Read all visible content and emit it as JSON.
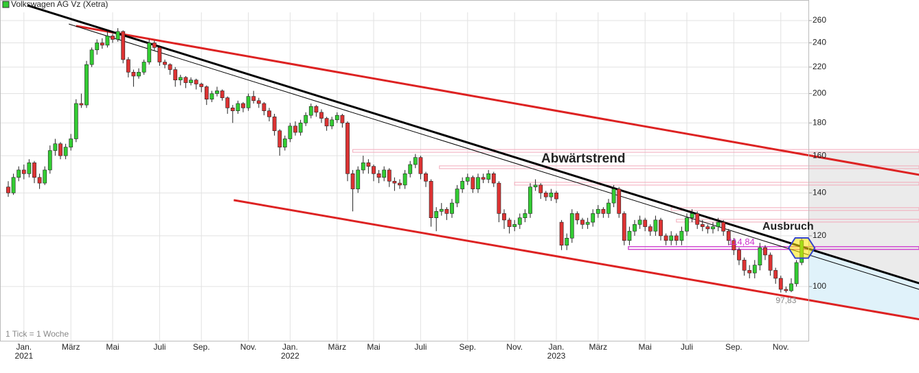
{
  "chart_data": {
    "type": "candlestick",
    "title": "Volkswagen AG Vz (Xetra)",
    "footnote": "1 Tick = 1 Woche",
    "log_scale": true,
    "grid": true,
    "up_color": "#33cc33",
    "down_color": "#dd3333",
    "legend_color": "#33cc33",
    "ylim": [
      82.3,
      267.8
    ],
    "yticks": [
      100,
      120,
      140,
      160,
      180,
      200,
      220,
      240,
      260
    ],
    "categories": [
      null,
      null,
      null,
      "Jan. 2021",
      null,
      null,
      null,
      null,
      null,
      null,
      null,
      null,
      "März",
      null,
      null,
      null,
      null,
      null,
      null,
      null,
      "Mai",
      null,
      null,
      null,
      null,
      null,
      null,
      null,
      null,
      "Juli",
      null,
      null,
      null,
      null,
      null,
      null,
      null,
      "Sep.",
      null,
      null,
      null,
      null,
      null,
      null,
      null,
      null,
      "Nov.",
      null,
      null,
      null,
      null,
      null,
      null,
      null,
      "Jan. 2022",
      null,
      null,
      null,
      null,
      null,
      null,
      null,
      null,
      "März",
      null,
      null,
      null,
      null,
      null,
      null,
      "Mai",
      null,
      null,
      null,
      null,
      null,
      null,
      null,
      null,
      "Juli",
      null,
      null,
      null,
      null,
      null,
      null,
      null,
      null,
      "Sep.",
      null,
      null,
      null,
      null,
      null,
      null,
      null,
      null,
      "Nov.",
      null,
      null,
      null,
      null,
      null,
      null,
      null,
      "Jan. 2023",
      null,
      null,
      null,
      null,
      null,
      null,
      null,
      "März",
      null,
      null,
      null,
      null,
      null,
      null,
      null,
      null,
      "Mai",
      null,
      null,
      null,
      null,
      null,
      null,
      null,
      "Juli",
      null,
      null,
      null,
      null,
      null,
      null,
      null,
      null,
      "Sep.",
      null,
      null,
      null,
      null,
      null,
      null,
      null,
      null,
      "Nov.",
      null,
      null,
      null,
      null
    ],
    "candles": [
      [
        143,
        146,
        138,
        140
      ],
      [
        140,
        150,
        139,
        148
      ],
      [
        148,
        154,
        146,
        152
      ],
      [
        152,
        155,
        147,
        150
      ],
      [
        150,
        158,
        148,
        156
      ],
      [
        156,
        157,
        145,
        148
      ],
      [
        148,
        150,
        142,
        145
      ],
      [
        145,
        154,
        144,
        152
      ],
      [
        152,
        166,
        150,
        163
      ],
      [
        163,
        170,
        160,
        167
      ],
      [
        167,
        168,
        158,
        160
      ],
      [
        160,
        167,
        158,
        165
      ],
      [
        165,
        173,
        163,
        170
      ],
      [
        170,
        196,
        168,
        193
      ],
      [
        193,
        200,
        190,
        192
      ],
      [
        192,
        225,
        190,
        222
      ],
      [
        222,
        236,
        220,
        234
      ],
      [
        234,
        243,
        230,
        240
      ],
      [
        240,
        244,
        235,
        238
      ],
      [
        238,
        250,
        236,
        246
      ],
      [
        246,
        248,
        240,
        243
      ],
      [
        243,
        253,
        241,
        250
      ],
      [
        250,
        251,
        223,
        226
      ],
      [
        226,
        228,
        212,
        216
      ],
      [
        216,
        218,
        205,
        213
      ],
      [
        213,
        219,
        211,
        216
      ],
      [
        216,
        226,
        214,
        224
      ],
      [
        224,
        243,
        222,
        240
      ],
      [
        240,
        242,
        233,
        236
      ],
      [
        236,
        237,
        221,
        224
      ],
      [
        224,
        226,
        219,
        222
      ],
      [
        222,
        223,
        214,
        218
      ],
      [
        218,
        220,
        205,
        210
      ],
      [
        210,
        214,
        206,
        212
      ],
      [
        212,
        213,
        204,
        208
      ],
      [
        208,
        212,
        206,
        210
      ],
      [
        210,
        211,
        203,
        207
      ],
      [
        207,
        208,
        201,
        205
      ],
      [
        205,
        206,
        192,
        196
      ],
      [
        196,
        202,
        194,
        200
      ],
      [
        200,
        205,
        198,
        202
      ],
      [
        202,
        203,
        195,
        197
      ],
      [
        197,
        198,
        186,
        190
      ],
      [
        190,
        192,
        180,
        188
      ],
      [
        188,
        195,
        186,
        193
      ],
      [
        193,
        194,
        187,
        190
      ],
      [
        190,
        200,
        188,
        198
      ],
      [
        198,
        202,
        193,
        195
      ],
      [
        195,
        197,
        190,
        193
      ],
      [
        193,
        194,
        185,
        188
      ],
      [
        188,
        190,
        181,
        184
      ],
      [
        184,
        186,
        172,
        175
      ],
      [
        175,
        176,
        160,
        165
      ],
      [
        165,
        172,
        163,
        170
      ],
      [
        170,
        180,
        168,
        178
      ],
      [
        178,
        181,
        172,
        174
      ],
      [
        174,
        182,
        172,
        180
      ],
      [
        180,
        187,
        178,
        185
      ],
      [
        185,
        193,
        183,
        191
      ],
      [
        191,
        192,
        184,
        187
      ],
      [
        187,
        189,
        180,
        183
      ],
      [
        183,
        184,
        175,
        178
      ],
      [
        178,
        184,
        176,
        182
      ],
      [
        182,
        187,
        180,
        185
      ],
      [
        185,
        186,
        177,
        180
      ],
      [
        180,
        181,
        146,
        150
      ],
      [
        150,
        152,
        131,
        142
      ],
      [
        142,
        154,
        140,
        152
      ],
      [
        152,
        160,
        150,
        156
      ],
      [
        156,
        158,
        150,
        154
      ],
      [
        154,
        155,
        146,
        150
      ],
      [
        150,
        152,
        145,
        148
      ],
      [
        148,
        154,
        146,
        152
      ],
      [
        152,
        153,
        143,
        146
      ],
      [
        146,
        148,
        141,
        145
      ],
      [
        145,
        147,
        142,
        144
      ],
      [
        144,
        152,
        142,
        150
      ],
      [
        150,
        157,
        148,
        155
      ],
      [
        155,
        161,
        153,
        159
      ],
      [
        159,
        160,
        147,
        150
      ],
      [
        150,
        151,
        143,
        146
      ],
      [
        146,
        147,
        124,
        128
      ],
      [
        128,
        133,
        122,
        131
      ],
      [
        131,
        135,
        129,
        132
      ],
      [
        132,
        133,
        127,
        130
      ],
      [
        130,
        137,
        128,
        135
      ],
      [
        135,
        144,
        133,
        142
      ],
      [
        142,
        148,
        140,
        146
      ],
      [
        146,
        150,
        144,
        148
      ],
      [
        148,
        149,
        140,
        142
      ],
      [
        142,
        150,
        140,
        148
      ],
      [
        148,
        150,
        145,
        147
      ],
      [
        147,
        152,
        145,
        150
      ],
      [
        150,
        151,
        143,
        145
      ],
      [
        145,
        146,
        126,
        130
      ],
      [
        130,
        132,
        123,
        127
      ],
      [
        127,
        128,
        121,
        124
      ],
      [
        124,
        127,
        122,
        125
      ],
      [
        125,
        130,
        123,
        128
      ],
      [
        128,
        132,
        126,
        130
      ],
      [
        130,
        145,
        128,
        143
      ],
      [
        143,
        147,
        141,
        144
      ],
      [
        144,
        145,
        137,
        140
      ],
      [
        140,
        141,
        136,
        138
      ],
      [
        138,
        142,
        136,
        140
      ],
      [
        140,
        141,
        135,
        137
      ],
      [
        126,
        127,
        114,
        116
      ],
      [
        116,
        121,
        114,
        119
      ],
      [
        119,
        132,
        117,
        130
      ],
      [
        130,
        131,
        125,
        127
      ],
      [
        127,
        128,
        123,
        125
      ],
      [
        125,
        128,
        123,
        126
      ],
      [
        126,
        132,
        124,
        130
      ],
      [
        130,
        134,
        128,
        132
      ],
      [
        132,
        133,
        128,
        130
      ],
      [
        130,
        137,
        128,
        135
      ],
      [
        135,
        144,
        133,
        142
      ],
      [
        142,
        143,
        128,
        130
      ],
      [
        130,
        131,
        116,
        118
      ],
      [
        118,
        124,
        116,
        122
      ],
      [
        122,
        127,
        120,
        125
      ],
      [
        125,
        129,
        123,
        127
      ],
      [
        127,
        128,
        122,
        124
      ],
      [
        124,
        125,
        120,
        122
      ],
      [
        122,
        129,
        120,
        127
      ],
      [
        127,
        128,
        118,
        120
      ],
      [
        120,
        121,
        116,
        118
      ],
      [
        118,
        122,
        116,
        120
      ],
      [
        120,
        121,
        116,
        118
      ],
      [
        118,
        124,
        116,
        122
      ],
      [
        122,
        130,
        120,
        128
      ],
      [
        128,
        132,
        126,
        130
      ],
      [
        130,
        131,
        123,
        125
      ],
      [
        125,
        127,
        122,
        124
      ],
      [
        124,
        125,
        121,
        123
      ],
      [
        123,
        126,
        121,
        124
      ],
      [
        124,
        128,
        122,
        126
      ],
      [
        126,
        127,
        120,
        122
      ],
      [
        122,
        123,
        116,
        118
      ],
      [
        118,
        119,
        112,
        114
      ],
      [
        114,
        115,
        108,
        110
      ],
      [
        110,
        111,
        104,
        106
      ],
      [
        106,
        108,
        103,
        105
      ],
      [
        105,
        110,
        103,
        108
      ],
      [
        108,
        117,
        106,
        115
      ],
      [
        115,
        116,
        110,
        112
      ],
      [
        112,
        113,
        104,
        106
      ],
      [
        106,
        107,
        101,
        103
      ],
      [
        103,
        104,
        97.9,
        99
      ],
      [
        99,
        100,
        97.83,
        98.5
      ],
      [
        98.5,
        103,
        98,
        101
      ],
      [
        101,
        110,
        100,
        109
      ],
      [
        109,
        119,
        108,
        118
      ]
    ],
    "trendlines": [
      {
        "color": "#dd2222",
        "width": 3,
        "from": [
          13,
          255
        ],
        "to": [
          174.5,
          149.4
        ]
      },
      {
        "color": "#dd2222",
        "width": 3,
        "from": [
          43.2,
          136.4
        ],
        "to": [
          174.5,
          88.9
        ]
      },
      {
        "color": "#000000",
        "width": 3,
        "from": [
          3.7,
          274.5
        ],
        "to": [
          174.5,
          101.2
        ]
      },
      {
        "color": "#000000",
        "width": 1,
        "from": [
          11.6,
          256.8
        ],
        "to": [
          174.5,
          99
        ]
      }
    ],
    "hlines": [
      {
        "value": 162.8,
        "from": 66,
        "color": "#f2a8b8"
      },
      {
        "value": 153.5,
        "from": 82.6,
        "color": "#f2a8b8"
      },
      {
        "value": 144.7,
        "from": 97,
        "color": "#f2a8b8"
      },
      {
        "value": 132.1,
        "from": 127,
        "color": "#f2a8b8"
      },
      {
        "value": 126.7,
        "from": 128,
        "color": "#f2a8b8"
      },
      {
        "value": 114.84,
        "from": 118.8,
        "color": "#cc33cc"
      }
    ],
    "annotations": [
      {
        "text": "Abwärtstrend"
      },
      {
        "text": "Ausbruch"
      },
      {
        "value": 114.84,
        "label": "114,84"
      },
      {
        "value": 97.83,
        "label": "97,83"
      }
    ]
  }
}
